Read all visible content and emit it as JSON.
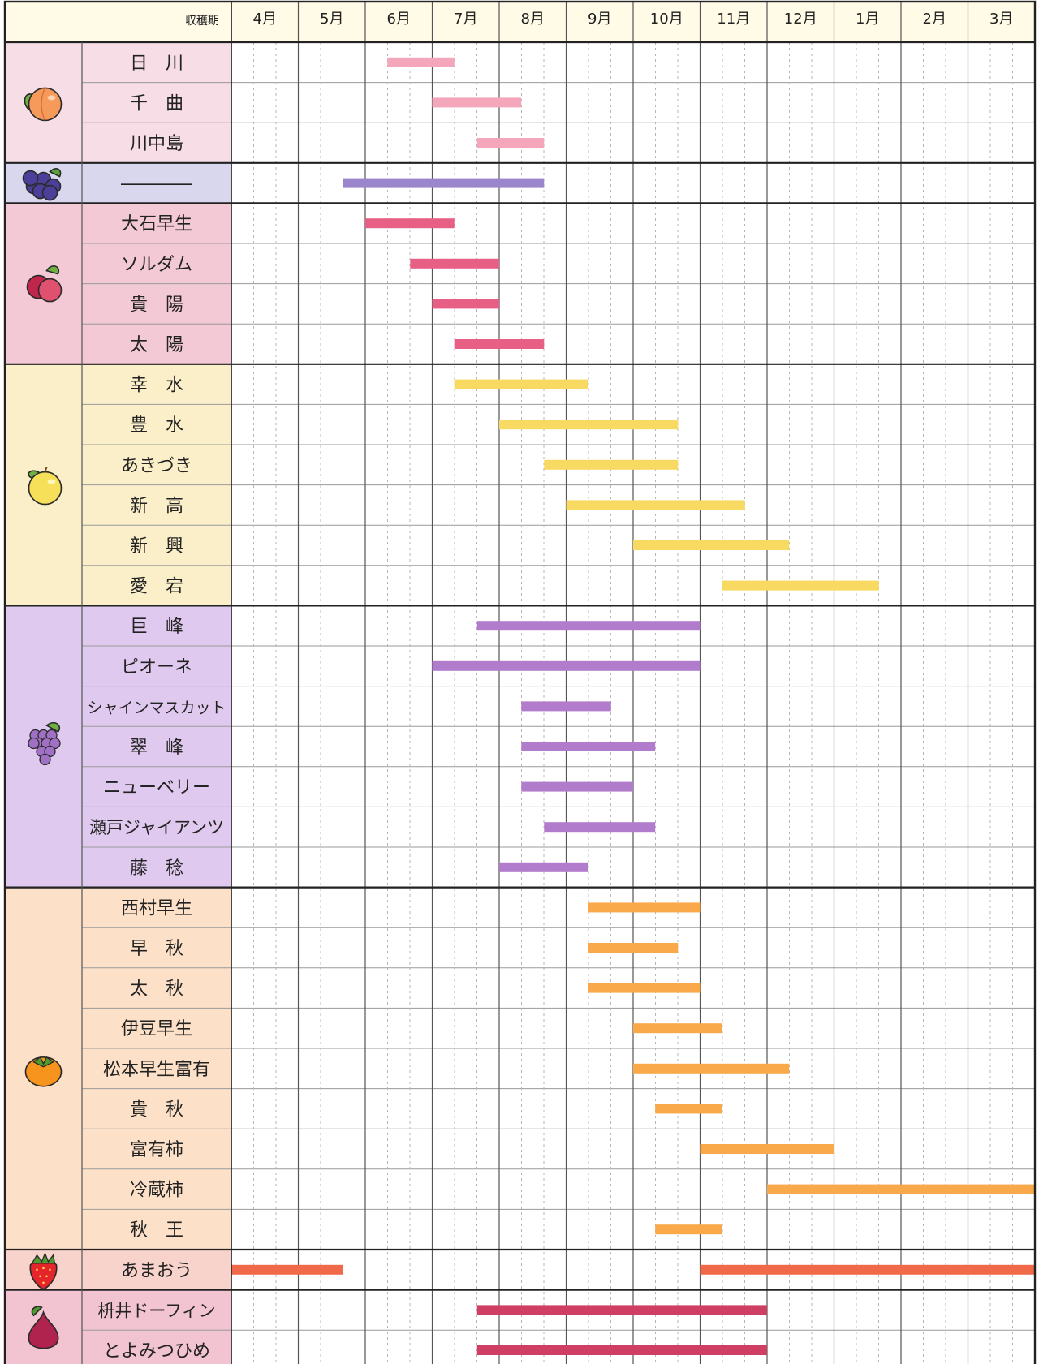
{
  "chart_data": {
    "type": "gantt",
    "header_label": "収穫期",
    "months": [
      "4月",
      "5月",
      "6月",
      "7月",
      "8月",
      "9月",
      "10月",
      "11月",
      "12月",
      "1月",
      "2月",
      "3月"
    ],
    "x_unit": "month index from April (0 = start of 4月, 12 = end of 3月); each month split into thirds (上旬/中旬/下旬)",
    "groups": [
      {
        "icon": "peach-icon",
        "bg": "#f6dde6",
        "bar_color": "#f4a7bb",
        "items": [
          {
            "name": "日　川",
            "start": 2.33,
            "end": 3.33
          },
          {
            "name": "千　曲",
            "start": 3.0,
            "end": 4.33
          },
          {
            "name": "川中島",
            "start": 3.67,
            "end": 4.67
          }
        ]
      },
      {
        "icon": "blueberry-icon",
        "bg": "#d9d7ee",
        "bar_color": "#9a86cc",
        "items": [
          {
            "name": "――――",
            "start": 1.67,
            "end": 4.67
          }
        ]
      },
      {
        "icon": "plum-icon",
        "bg": "#f2c9d4",
        "bar_color": "#e85f86",
        "items": [
          {
            "name": "大石早生",
            "start": 2.0,
            "end": 3.33
          },
          {
            "name": "ソルダム",
            "start": 2.67,
            "end": 4.0
          },
          {
            "name": "貴　陽",
            "start": 3.0,
            "end": 4.0
          },
          {
            "name": "太　陽",
            "start": 3.33,
            "end": 4.67
          }
        ]
      },
      {
        "icon": "pear-icon",
        "bg": "#fbefc9",
        "bar_color": "#f8d961",
        "items": [
          {
            "name": "幸　水",
            "start": 3.33,
            "end": 5.33
          },
          {
            "name": "豊　水",
            "start": 4.0,
            "end": 6.67
          },
          {
            "name": "あきづき",
            "start": 4.67,
            "end": 6.67
          },
          {
            "name": "新　高",
            "start": 5.0,
            "end": 7.67
          },
          {
            "name": "新　興",
            "start": 6.0,
            "end": 8.33
          },
          {
            "name": "愛　宕",
            "start": 7.33,
            "end": 9.67
          }
        ]
      },
      {
        "icon": "grape-icon",
        "bg": "#e0c9ee",
        "bar_color": "#b27ccc",
        "items": [
          {
            "name": "巨　峰",
            "start": 3.67,
            "end": 7.0
          },
          {
            "name": "ピオーネ",
            "start": 3.0,
            "end": 7.0
          },
          {
            "name": "シャインマスカット",
            "start": 4.33,
            "end": 5.67
          },
          {
            "name": "翠　峰",
            "start": 4.33,
            "end": 6.33
          },
          {
            "name": "ニューベリー",
            "start": 4.33,
            "end": 6.0
          },
          {
            "name": "瀬戸ジャイアンツ",
            "start": 4.67,
            "end": 6.33
          },
          {
            "name": "藤　稔",
            "start": 4.0,
            "end": 5.33
          }
        ]
      },
      {
        "icon": "persimmon-icon",
        "bg": "#fde0c8",
        "bar_color": "#f9a94a",
        "items": [
          {
            "name": "西村早生",
            "start": 5.33,
            "end": 7.0
          },
          {
            "name": "早　秋",
            "start": 5.33,
            "end": 6.67
          },
          {
            "name": "太　秋",
            "start": 5.33,
            "end": 7.0
          },
          {
            "name": "伊豆早生",
            "start": 6.0,
            "end": 7.33
          },
          {
            "name": "松本早生富有",
            "start": 6.0,
            "end": 8.33
          },
          {
            "name": "貴　秋",
            "start": 6.33,
            "end": 7.33
          },
          {
            "name": "富有柿",
            "start": 7.0,
            "end": 9.0
          },
          {
            "name": "冷蔵柿",
            "start": 8.0,
            "end": 12.0
          },
          {
            "name": "秋　王",
            "start": 6.33,
            "end": 7.33
          }
        ]
      },
      {
        "icon": "strawberry-icon",
        "bg": "#f8d3cc",
        "bar_color": "#f06a4a",
        "items": [
          {
            "name": "あまおう",
            "segments": [
              [
                0.0,
                1.67
              ],
              [
                7.0,
                12.0
              ]
            ]
          }
        ]
      },
      {
        "icon": "fig-icon",
        "bg": "#f2c3d0",
        "bar_color": "#cf3f63",
        "items": [
          {
            "name": "枡井ドーフィン",
            "start": 3.67,
            "end": 8.0
          },
          {
            "name": "とよみつひめ",
            "start": 3.67,
            "end": 8.0
          }
        ]
      }
    ]
  }
}
